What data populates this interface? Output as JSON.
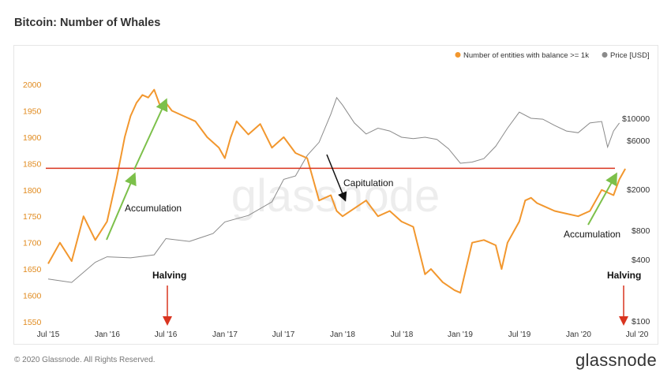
{
  "page": {
    "title": "Bitcoin: Number of Whales",
    "copyright": "© 2020 Glassnode. All Rights Reserved.",
    "brand": "glassnode",
    "watermark": "glassnode"
  },
  "chart_data": {
    "type": "line",
    "title": "Bitcoin: Number of Whales",
    "colors": {
      "whales": "#f2972e",
      "price": "#8a8a8a",
      "threshold": "#d9341f",
      "accumulation": "#7cc04a"
    },
    "legend": {
      "placement": "top-right",
      "entries": [
        "Number of entities with balance >= 1k",
        "Price [USD]"
      ]
    },
    "x_ticks": [
      "Jul '15",
      "Jan '16",
      "Jul '16",
      "Jan '17",
      "Jul '17",
      "Jan '18",
      "Jul '18",
      "Jan '19",
      "Jul '19",
      "Jan '20",
      "Jul '20"
    ],
    "y_left": {
      "ticks": [
        "1550",
        "1600",
        "1650",
        "1700",
        "1750",
        "1800",
        "1850",
        "1900",
        "1950",
        "2000"
      ],
      "range": [
        1550,
        2000
      ]
    },
    "y_right": {
      "ticks": [
        "$100",
        "$400",
        "$800",
        "$2000",
        "$6000",
        "$10000"
      ],
      "scale": "log"
    },
    "series": [
      {
        "name": "Number of entities with balance >= 1k",
        "axis": "left",
        "x": [
          2015.5,
          2015.6,
          2015.7,
          2015.8,
          2015.9,
          2016.0,
          2016.08,
          2016.15,
          2016.2,
          2016.25,
          2016.3,
          2016.35,
          2016.4,
          2016.45,
          2016.5,
          2016.55,
          2016.65,
          2016.75,
          2016.85,
          2016.95,
          2017.0,
          2017.05,
          2017.1,
          2017.2,
          2017.3,
          2017.4,
          2017.5,
          2017.6,
          2017.7,
          2017.8,
          2017.9,
          2017.95,
          2018.0,
          2018.1,
          2018.2,
          2018.3,
          2018.4,
          2018.5,
          2018.6,
          2018.7,
          2018.75,
          2018.85,
          2018.95,
          2019.0,
          2019.1,
          2019.2,
          2019.3,
          2019.35,
          2019.4,
          2019.5,
          2019.55,
          2019.6,
          2019.65,
          2019.7,
          2019.8,
          2019.9,
          2020.0,
          2020.1,
          2020.2,
          2020.3,
          2020.35,
          2020.4
        ],
        "y": [
          1660,
          1700,
          1665,
          1750,
          1705,
          1740,
          1820,
          1900,
          1940,
          1965,
          1980,
          1975,
          1990,
          1960,
          1965,
          1950,
          1940,
          1930,
          1900,
          1880,
          1860,
          1900,
          1930,
          1905,
          1925,
          1880,
          1900,
          1870,
          1860,
          1780,
          1790,
          1760,
          1750,
          1765,
          1780,
          1750,
          1760,
          1740,
          1730,
          1640,
          1650,
          1625,
          1610,
          1605,
          1700,
          1705,
          1695,
          1650,
          1700,
          1740,
          1780,
          1785,
          1775,
          1770,
          1760,
          1755,
          1750,
          1760,
          1800,
          1790,
          1820,
          1840
        ]
      },
      {
        "name": "Price [USD]",
        "axis": "right",
        "x": [
          2015.5,
          2015.7,
          2015.9,
          2016.0,
          2016.2,
          2016.4,
          2016.5,
          2016.7,
          2016.9,
          2017.0,
          2017.2,
          2017.4,
          2017.5,
          2017.6,
          2017.7,
          2017.8,
          2017.9,
          2017.95,
          2018.0,
          2018.1,
          2018.2,
          2018.3,
          2018.4,
          2018.5,
          2018.6,
          2018.7,
          2018.8,
          2018.9,
          2019.0,
          2019.1,
          2019.2,
          2019.3,
          2019.4,
          2019.5,
          2019.6,
          2019.7,
          2019.8,
          2019.9,
          2020.0,
          2020.1,
          2020.2,
          2020.25,
          2020.3,
          2020.35
        ],
        "y": [
          260,
          240,
          380,
          430,
          420,
          450,
          650,
          610,
          730,
          950,
          1100,
          1500,
          2500,
          2700,
          4300,
          5800,
          11000,
          16000,
          13500,
          9000,
          7000,
          8000,
          7500,
          6500,
          6300,
          6500,
          6200,
          5000,
          3600,
          3700,
          4000,
          5300,
          8000,
          11500,
          10000,
          9800,
          8500,
          7500,
          7200,
          9000,
          9300,
          5200,
          7500,
          9000
        ]
      }
    ],
    "threshold_line": 1841,
    "annotations": [
      "Accumulation",
      "Capitulation",
      "Accumulation",
      "Halving",
      "Halving"
    ]
  }
}
